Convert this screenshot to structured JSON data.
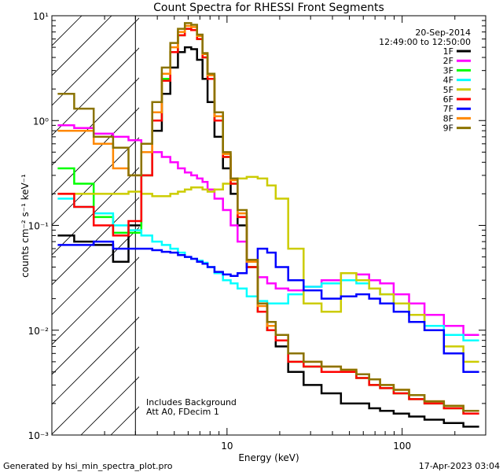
{
  "chart_data": {
    "type": "line",
    "title": "Count Spectra for RHESSI Front Segments",
    "xlabel": "Energy (keV)",
    "ylabel": "counts cm⁻² s⁻¹ keV⁻¹",
    "x_scale": "log",
    "y_scale": "log",
    "xlim": [
      1.0,
      300.0
    ],
    "ylim": [
      0.001,
      10.0
    ],
    "x_ticks": [
      10,
      100
    ],
    "x_tick_labels": [
      "10",
      "100"
    ],
    "y_ticks": [
      0.001,
      0.01,
      0.1,
      1,
      10
    ],
    "y_tick_labels": [
      "10⁻³",
      "10⁻²",
      "10⁻¹",
      "10⁰",
      "10¹"
    ],
    "shaded_region_kev": [
      1.0,
      3.0
    ],
    "date": "20-Sep-2014",
    "time_range": "12:49:00 to 12:50:00",
    "annotations": [
      "Includes Background",
      "Att A0, FDecim 1"
    ],
    "series": [
      {
        "name": "1F",
        "color": "#000000",
        "x": [
          1.2,
          1.5,
          2,
          2.5,
          3,
          3.5,
          4,
          4.5,
          5,
          5.5,
          6,
          6.5,
          7,
          7.5,
          8,
          9,
          10,
          11,
          12,
          14,
          16,
          18,
          20,
          25,
          30,
          40,
          50,
          60,
          70,
          80,
          100,
          120,
          150,
          200,
          250
        ],
        "y": [
          0.08,
          0.07,
          0.065,
          0.045,
          0.1,
          0.3,
          0.8,
          1.8,
          3.2,
          4.5,
          5.0,
          4.8,
          3.8,
          2.5,
          1.5,
          0.7,
          0.35,
          0.2,
          0.1,
          0.04,
          0.018,
          0.01,
          0.007,
          0.004,
          0.003,
          0.0025,
          0.002,
          0.002,
          0.0018,
          0.0017,
          0.0016,
          0.0015,
          0.0014,
          0.0013,
          0.0012
        ]
      },
      {
        "name": "2F",
        "color": "#ff00ff",
        "x": [
          1.2,
          1.5,
          2,
          2.5,
          3,
          3.5,
          4,
          4.5,
          5,
          5.5,
          6,
          6.5,
          7,
          7.5,
          8,
          9,
          10,
          11,
          12,
          14,
          16,
          18,
          20,
          25,
          30,
          40,
          50,
          60,
          70,
          80,
          100,
          120,
          150,
          200,
          250
        ],
        "y": [
          0.9,
          0.85,
          0.75,
          0.7,
          0.65,
          0.6,
          0.5,
          0.45,
          0.4,
          0.35,
          0.32,
          0.3,
          0.28,
          0.26,
          0.22,
          0.18,
          0.14,
          0.1,
          0.07,
          0.045,
          0.032,
          0.028,
          0.025,
          0.024,
          0.026,
          0.03,
          0.035,
          0.034,
          0.03,
          0.028,
          0.022,
          0.018,
          0.014,
          0.011,
          0.009
        ]
      },
      {
        "name": "3F",
        "color": "#00ff00",
        "x": [
          1.2,
          1.5,
          2,
          2.5,
          3,
          3.5,
          4,
          4.5,
          5,
          5.5,
          6,
          6.5,
          7,
          7.5,
          8,
          9,
          10,
          11,
          12,
          14,
          16,
          18,
          20,
          25,
          30,
          40,
          50,
          60,
          70,
          80,
          100,
          120,
          150,
          200,
          250
        ],
        "y": [
          0.35,
          0.25,
          0.12,
          0.085,
          0.085,
          0.3,
          1.0,
          2.5,
          4.5,
          6.5,
          7.5,
          7.3,
          6.0,
          4.0,
          2.5,
          1.0,
          0.45,
          0.25,
          0.12,
          0.04,
          0.015,
          0.01,
          0.008,
          0.005,
          0.0045,
          0.004,
          0.004,
          0.0035,
          0.003,
          0.0028,
          0.0025,
          0.0022,
          0.002,
          0.0018,
          0.0016
        ]
      },
      {
        "name": "4F",
        "color": "#00ffff",
        "x": [
          1.2,
          1.5,
          2,
          2.5,
          3,
          3.5,
          4,
          4.5,
          5,
          5.5,
          6,
          6.5,
          7,
          7.5,
          8,
          9,
          10,
          11,
          12,
          14,
          16,
          18,
          20,
          25,
          30,
          40,
          50,
          60,
          70,
          80,
          100,
          120,
          150,
          200,
          250
        ],
        "y": [
          0.18,
          0.15,
          0.13,
          0.1,
          0.09,
          0.08,
          0.07,
          0.065,
          0.06,
          0.055,
          0.05,
          0.048,
          0.046,
          0.044,
          0.04,
          0.035,
          0.03,
          0.028,
          0.025,
          0.021,
          0.019,
          0.018,
          0.018,
          0.022,
          0.026,
          0.028,
          0.03,
          0.028,
          0.025,
          0.022,
          0.018,
          0.014,
          0.011,
          0.009,
          0.008
        ]
      },
      {
        "name": "5F",
        "color": "#cccc00",
        "x": [
          1.2,
          1.5,
          2,
          2.5,
          3,
          3.5,
          4,
          4.5,
          5,
          5.5,
          6,
          6.5,
          7,
          7.5,
          8,
          9,
          10,
          11,
          12,
          14,
          16,
          18,
          20,
          25,
          30,
          40,
          50,
          60,
          70,
          80,
          100,
          120,
          150,
          200,
          250
        ],
        "y": [
          0.2,
          0.2,
          0.2,
          0.2,
          0.21,
          0.2,
          0.19,
          0.19,
          0.2,
          0.21,
          0.22,
          0.23,
          0.23,
          0.22,
          0.21,
          0.22,
          0.25,
          0.27,
          0.28,
          0.29,
          0.28,
          0.24,
          0.18,
          0.06,
          0.018,
          0.015,
          0.035,
          0.03,
          0.025,
          0.022,
          0.018,
          0.014,
          0.01,
          0.007,
          0.005
        ]
      },
      {
        "name": "6F",
        "color": "#ff0000",
        "x": [
          1.2,
          1.5,
          2,
          2.5,
          3,
          3.5,
          4,
          4.5,
          5,
          5.5,
          6,
          6.5,
          7,
          7.5,
          8,
          9,
          10,
          11,
          12,
          14,
          16,
          18,
          20,
          25,
          30,
          40,
          50,
          60,
          70,
          80,
          100,
          120,
          150,
          200,
          250
        ],
        "y": [
          0.2,
          0.15,
          0.1,
          0.08,
          0.11,
          0.3,
          1.0,
          2.4,
          4.5,
          6.5,
          7.5,
          7.3,
          6.0,
          4.0,
          2.5,
          1.0,
          0.45,
          0.25,
          0.12,
          0.04,
          0.015,
          0.01,
          0.008,
          0.005,
          0.0045,
          0.004,
          0.004,
          0.0035,
          0.003,
          0.0028,
          0.0025,
          0.0022,
          0.002,
          0.0018,
          0.0016
        ]
      },
      {
        "name": "7F",
        "color": "#0000ff",
        "x": [
          1.2,
          1.5,
          2,
          2.5,
          3,
          3.5,
          4,
          4.5,
          5,
          5.5,
          6,
          6.5,
          7,
          7.5,
          8,
          9,
          10,
          11,
          12,
          14,
          16,
          18,
          20,
          25,
          30,
          40,
          50,
          60,
          70,
          80,
          100,
          120,
          150,
          200,
          250
        ],
        "y": [
          0.065,
          0.065,
          0.07,
          0.06,
          0.06,
          0.06,
          0.058,
          0.056,
          0.055,
          0.052,
          0.05,
          0.048,
          0.045,
          0.043,
          0.04,
          0.036,
          0.034,
          0.033,
          0.035,
          0.045,
          0.06,
          0.055,
          0.04,
          0.03,
          0.024,
          0.02,
          0.021,
          0.022,
          0.02,
          0.018,
          0.015,
          0.012,
          0.01,
          0.006,
          0.004
        ]
      },
      {
        "name": "8F",
        "color": "#ff8800",
        "x": [
          1.2,
          1.5,
          2,
          2.5,
          3,
          3.5,
          4,
          4.5,
          5,
          5.5,
          6,
          6.5,
          7,
          7.5,
          8,
          9,
          10,
          11,
          12,
          14,
          16,
          18,
          20,
          25,
          30,
          40,
          50,
          60,
          70,
          80,
          100,
          120,
          150,
          200,
          250
        ],
        "y": [
          0.8,
          0.8,
          0.6,
          0.35,
          0.3,
          0.5,
          1.2,
          2.8,
          5.0,
          7.0,
          8.0,
          7.8,
          6.4,
          4.3,
          2.7,
          1.1,
          0.48,
          0.27,
          0.13,
          0.045,
          0.017,
          0.011,
          0.009,
          0.006,
          0.005,
          0.0045,
          0.0042,
          0.0038,
          0.0034,
          0.003,
          0.0027,
          0.0024,
          0.0021,
          0.0019,
          0.0017
        ]
      },
      {
        "name": "9F",
        "color": "#8b7300",
        "x": [
          1.2,
          1.5,
          2,
          2.5,
          3,
          3.5,
          4,
          4.5,
          5,
          5.5,
          6,
          6.5,
          7,
          7.5,
          8,
          9,
          10,
          11,
          12,
          14,
          16,
          18,
          20,
          25,
          30,
          40,
          50,
          60,
          70,
          80,
          100,
          120,
          150,
          200,
          250
        ],
        "y": [
          1.8,
          1.3,
          0.7,
          0.55,
          0.3,
          0.6,
          1.5,
          3.2,
          5.5,
          7.5,
          8.5,
          8.2,
          6.6,
          4.4,
          2.8,
          1.2,
          0.5,
          0.28,
          0.14,
          0.047,
          0.018,
          0.012,
          0.009,
          0.006,
          0.005,
          0.0045,
          0.0042,
          0.0038,
          0.0034,
          0.003,
          0.0027,
          0.0024,
          0.0021,
          0.0019,
          0.0017
        ]
      }
    ]
  },
  "footer": {
    "generated_by": "Generated by hsi_min_spectra_plot.pro",
    "timestamp": "17-Apr-2023 03:04"
  }
}
